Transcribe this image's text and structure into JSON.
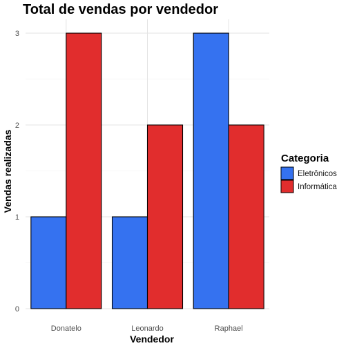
{
  "chart_data": {
    "type": "bar",
    "title": "Total de vendas por vendedor",
    "xlabel": "Vendedor",
    "ylabel": "Vendas realizadas",
    "categories": [
      "Donatelo",
      "Leonardo",
      "Raphael"
    ],
    "series": [
      {
        "name": "Eletrônicos",
        "values": [
          1,
          1,
          3
        ],
        "color": "#3572F0"
      },
      {
        "name": "Informática",
        "values": [
          3,
          2,
          2
        ],
        "color": "#E12D2D"
      }
    ],
    "ylim": [
      0,
      3
    ],
    "yticks": [
      0,
      1,
      2,
      3
    ],
    "grid": true,
    "legend": {
      "title": "Categoria",
      "position": "right"
    }
  }
}
